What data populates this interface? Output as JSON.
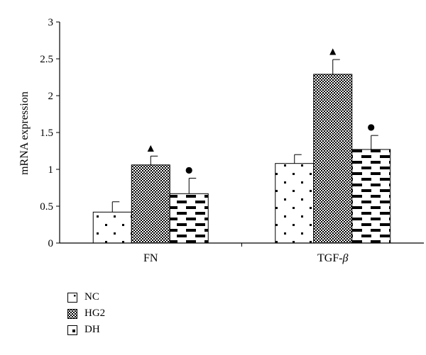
{
  "chart_data": {
    "type": "bar",
    "ylabel": "mRNA expression",
    "ylim": [
      0,
      3
    ],
    "yticks": [
      "0",
      "0.5",
      "1",
      "1.5",
      "2",
      "2.5",
      "3"
    ],
    "categories": [
      "FN",
      "TGF-β"
    ],
    "category_display": [
      {
        "text": "FN",
        "italic": ""
      },
      {
        "text": "TGF-",
        "italic": "β"
      }
    ],
    "series": [
      {
        "name": "NC",
        "pattern": "dots",
        "values": [
          0.42,
          1.08
        ],
        "errors": [
          0.14,
          0.12
        ],
        "markers": [
          "",
          ""
        ]
      },
      {
        "name": "HG2",
        "pattern": "checker",
        "values": [
          1.06,
          2.29
        ],
        "errors": [
          0.12,
          0.2
        ],
        "markers": [
          "▲",
          "▲"
        ]
      },
      {
        "name": "DH",
        "pattern": "dashes",
        "values": [
          0.67,
          1.27
        ],
        "errors": [
          0.21,
          0.19
        ],
        "markers": [
          "●",
          "●"
        ]
      }
    ],
    "legend_position": "bottom-left",
    "grid": false
  }
}
